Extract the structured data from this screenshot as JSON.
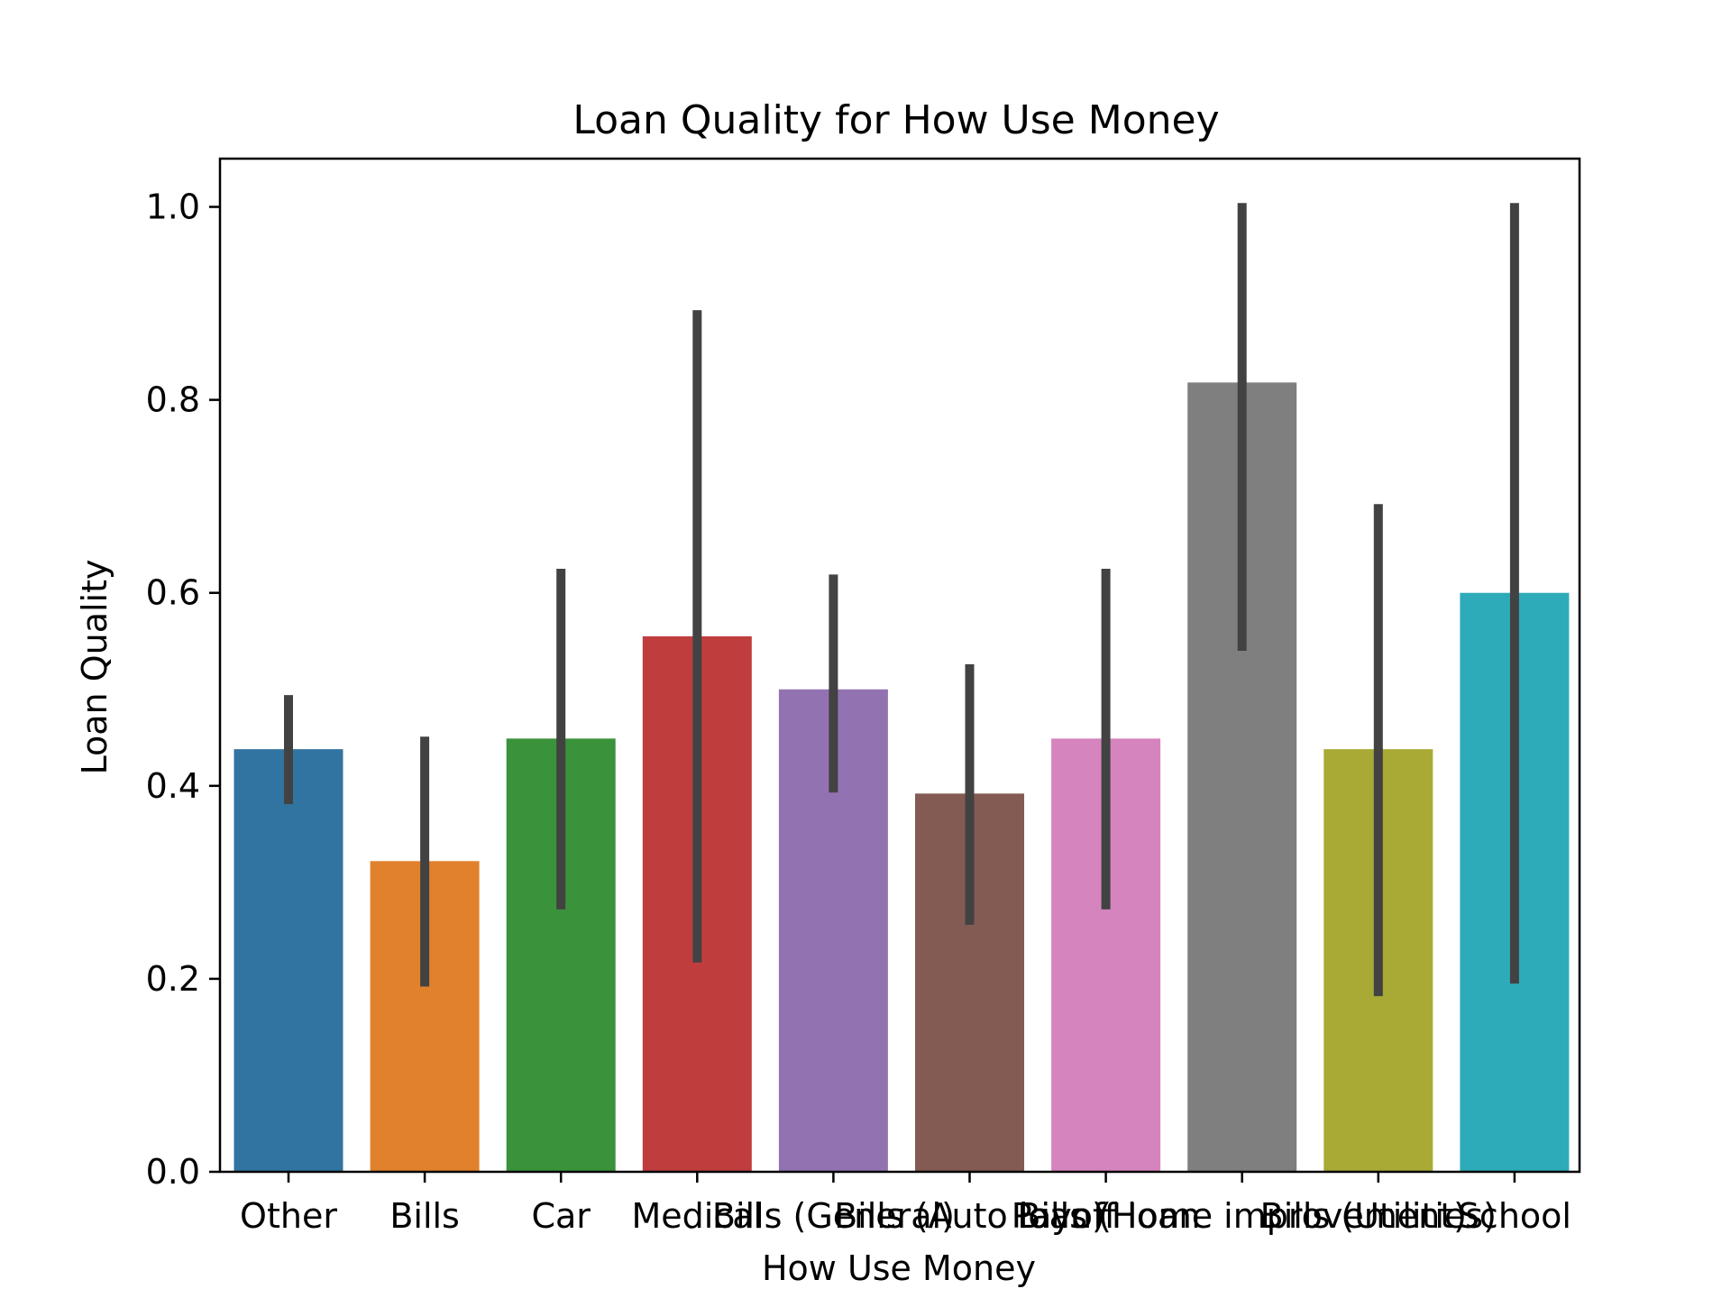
{
  "chart_data": {
    "type": "bar",
    "title": "Loan Quality for How Use Money",
    "xlabel": "How Use Money",
    "ylabel": "Loan Quality",
    "ylim": [
      0,
      1.05
    ],
    "yticks": [
      "0.0",
      "0.2",
      "0.4",
      "0.6",
      "0.8",
      "1.0"
    ],
    "grid": false,
    "categories": [
      "Other",
      "Bills",
      "Car",
      "Medical",
      "Bills (General)",
      "Bills (Auto loan)",
      "Payoff loan",
      "Bills (Home improvement)",
      "Bills (Utilities)",
      "School"
    ],
    "values": [
      0.438,
      0.322,
      0.449,
      0.555,
      0.5,
      0.392,
      0.449,
      0.818,
      0.438,
      0.6
    ],
    "error_low": [
      0.381,
      0.192,
      0.272,
      0.217,
      0.393,
      0.256,
      0.272,
      0.54,
      0.182,
      0.195
    ],
    "error_high": [
      0.494,
      0.451,
      0.625,
      0.893,
      0.619,
      0.526,
      0.625,
      1.004,
      0.692,
      1.004
    ],
    "colors": [
      "#3274a1",
      "#e1812c",
      "#3a923a",
      "#c03d3e",
      "#9372b2",
      "#845b53",
      "#d684bd",
      "#7f7f7f",
      "#a9aa35",
      "#2eabb8"
    ],
    "errorbar_color": "#424242"
  }
}
